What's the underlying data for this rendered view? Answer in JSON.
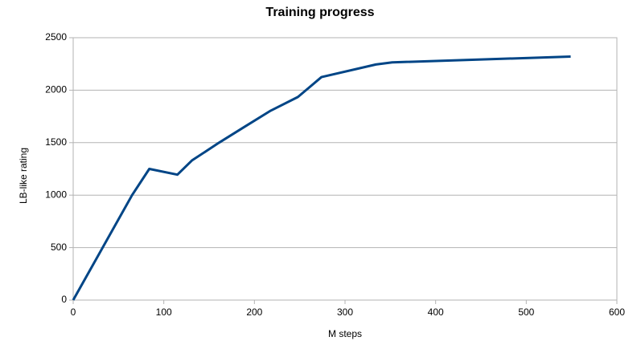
{
  "chart_data": {
    "type": "line",
    "title": "Training progress",
    "x_label": "M steps",
    "y_label": "LB-like rating",
    "x": [
      0,
      65,
      84,
      115,
      131,
      161,
      188,
      218,
      248,
      274,
      334,
      352,
      549
    ],
    "series": [
      {
        "name": "LB-like rating",
        "color": "#004586",
        "values": [
          0,
          1000,
          1250,
          1195,
          1330,
          1500,
          1645,
          1805,
          1935,
          2125,
          2245,
          2265,
          2320
        ]
      }
    ],
    "xlim": [
      0,
      600
    ],
    "xticks": [
      0,
      100,
      200,
      300,
      400,
      500,
      600
    ],
    "ylim": [
      0,
      2500
    ],
    "yticks": [
      0,
      500,
      1000,
      1500,
      2000,
      2500
    ],
    "grid": true
  }
}
